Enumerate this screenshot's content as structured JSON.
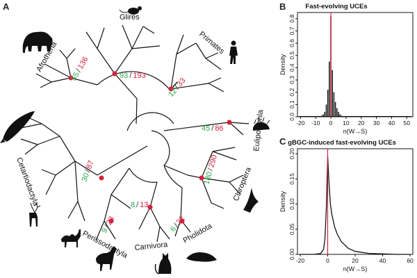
{
  "panels": {
    "a": "A",
    "b": "B",
    "c": "C"
  },
  "tree": {
    "clades": {
      "glires": "Glires",
      "primates": "Primates",
      "afrotheria": "Afrotheria",
      "eulipotyphla": "Eulipotyphla",
      "cetartiodactyla": "Cetartiodactyla",
      "chiroptera": "Chiroptera",
      "perissodactyla": "Perissodactyla",
      "carnivora": "Carnivora",
      "pholidota": "Pholidota"
    },
    "counts": {
      "separator": "/",
      "afrotheria": {
        "green": "55",
        "red": "136"
      },
      "glires": {
        "green": "93",
        "red": "193"
      },
      "primates": {
        "green": "12",
        "red": "33"
      },
      "eulipotyphla": {
        "green": "45",
        "red": "86"
      },
      "cetartiodactyla": {
        "green": "30",
        "red": "87"
      },
      "chiroptera": {
        "green": "180",
        "red": "290"
      },
      "perissodactyla": {
        "green": "9",
        "red": "23"
      },
      "carnivora": {
        "green": "8",
        "red": "13"
      },
      "pholidota": {
        "green": "6",
        "red": "22"
      }
    },
    "colors": {
      "green": "#2aa84a",
      "red": "#d4213d",
      "branch": "#111111"
    },
    "icons": [
      "elephant-icon",
      "mouse-icon",
      "human-icon",
      "hedgehog-icon",
      "whale-icon",
      "deer-icon",
      "bat-icon",
      "camel-icon",
      "horse-icon",
      "cat-icon",
      "pangolin-icon"
    ]
  },
  "chart_data": [
    {
      "type": "bar",
      "title": "Fast-evolving UCEs",
      "xlabel": "n(W→S)",
      "ylabel": "Density",
      "xlim": [
        -22,
        54
      ],
      "ylim": [
        0,
        0.85
      ],
      "xticks": [
        -20,
        -10,
        0,
        10,
        20,
        30,
        40,
        50
      ],
      "yticks": [
        0.0,
        0.1,
        0.2,
        0.3,
        0.4,
        0.5,
        0.6,
        0.7,
        0.8
      ],
      "x": [
        -7,
        -6,
        -5,
        -4,
        -3,
        -2,
        -1,
        0,
        1,
        2,
        3,
        4,
        5,
        6,
        7,
        8
      ],
      "values": [
        0.005,
        0.01,
        0.02,
        0.04,
        0.1,
        0.22,
        0.45,
        0.82,
        0.38,
        0.2,
        0.12,
        0.07,
        0.04,
        0.02,
        0.01,
        0.005
      ],
      "reference_line_x": 0,
      "reference_color": "#d4213d",
      "grid": false
    },
    {
      "type": "line",
      "title": "gBGC-induced fast-evolving UCEs",
      "xlabel": "n(W→S)",
      "ylabel": "Density",
      "xlim": [
        -22,
        62
      ],
      "ylim": [
        0,
        0.21
      ],
      "xticks": [
        -20,
        0,
        20,
        40,
        60
      ],
      "yticks": [
        0.0,
        0.05,
        0.1,
        0.15,
        0.2
      ],
      "x": [
        -20,
        -10,
        -5,
        -3,
        -2,
        -1,
        0,
        1,
        2,
        3,
        5,
        7,
        10,
        15,
        20,
        30,
        40,
        50,
        60
      ],
      "values": [
        0.0,
        0.0,
        0.002,
        0.01,
        0.03,
        0.09,
        0.195,
        0.14,
        0.1,
        0.08,
        0.055,
        0.04,
        0.025,
        0.012,
        0.006,
        0.002,
        0.001,
        0.0,
        0.0
      ],
      "reference_line_x": 0,
      "reference_color": "#d4213d",
      "grid": false
    }
  ]
}
